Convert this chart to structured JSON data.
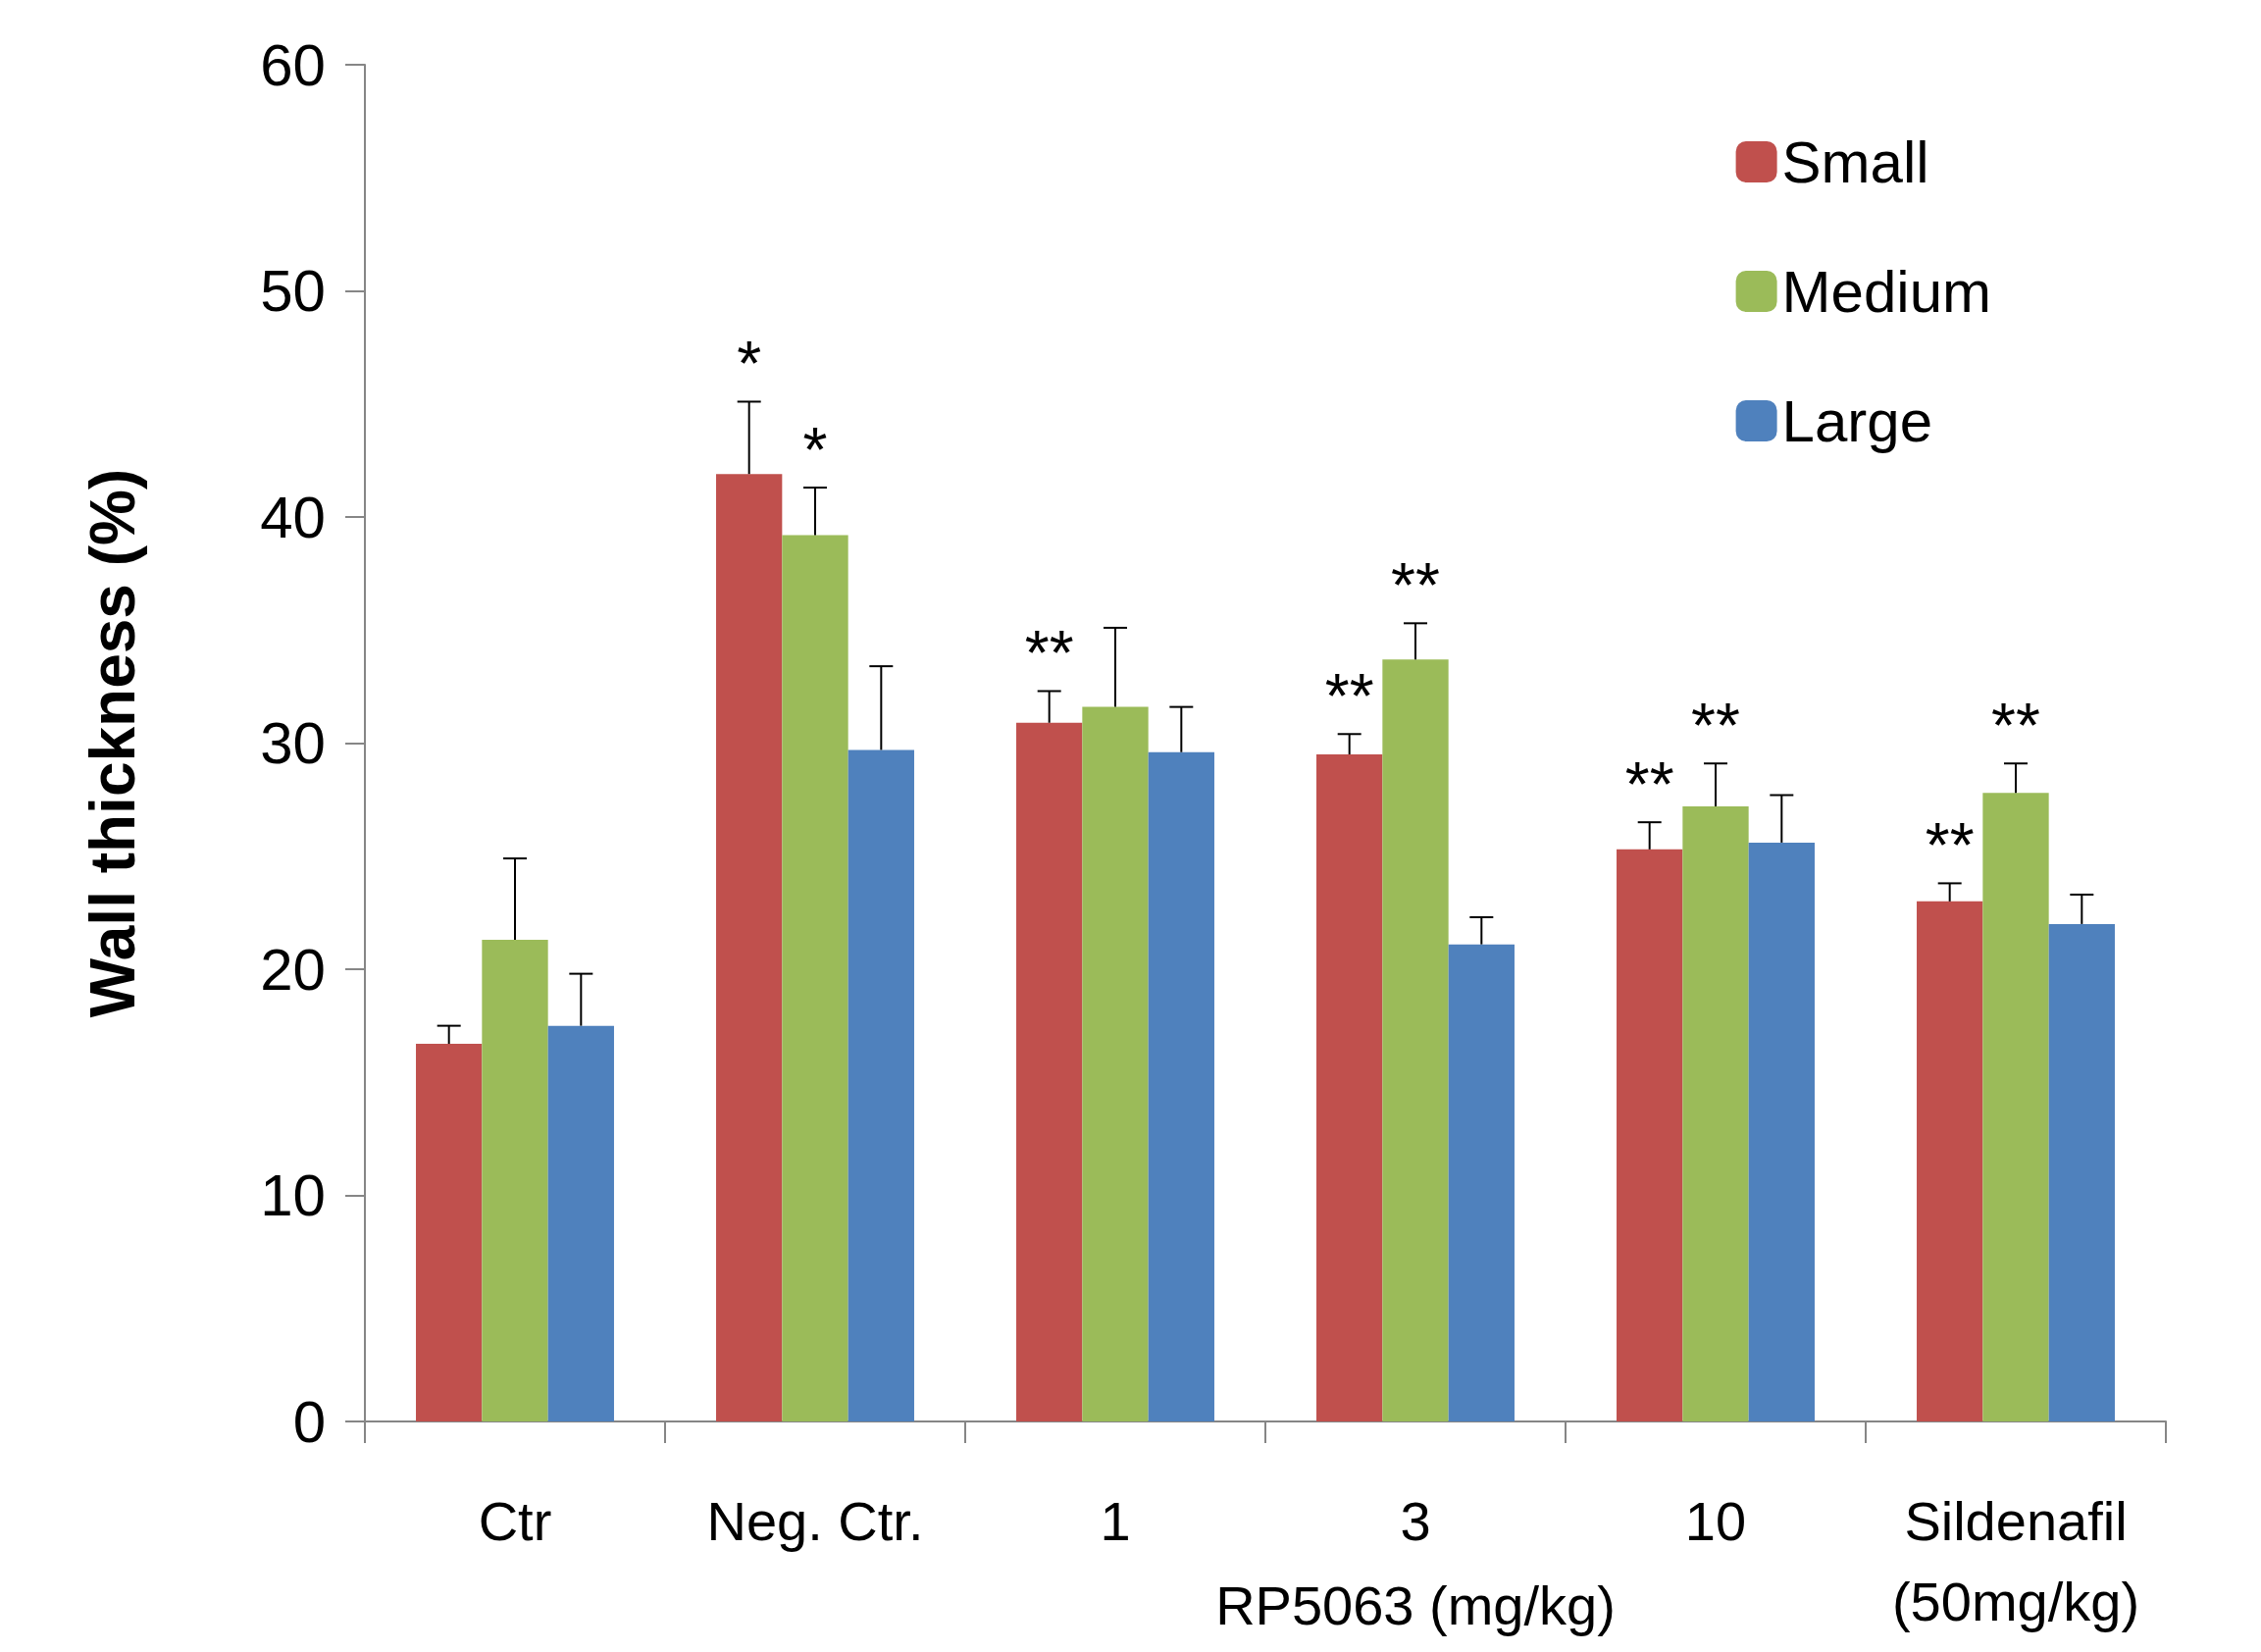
{
  "chart_data": {
    "type": "bar",
    "ylabel": "Wall thickness (%)",
    "categories": [
      "Ctr",
      "Neg. Ctr.",
      "1",
      "3",
      "10",
      "Sildenafil\n(50mg/kg)"
    ],
    "series": [
      {
        "name": "Small",
        "color": "#c0504d",
        "values": [
          16.7,
          41.9,
          30.9,
          29.5,
          25.3,
          23.0
        ],
        "errors": [
          [
            16.7,
            17.5
          ],
          [
            41.9,
            45.1
          ],
          [
            30.9,
            32.3
          ],
          [
            29.5,
            30.4
          ],
          [
            25.3,
            26.5
          ],
          [
            23.0,
            23.8
          ]
        ]
      },
      {
        "name": "Medium",
        "color": "#9bbb59",
        "values": [
          21.3,
          39.2,
          31.6,
          33.7,
          27.2,
          27.8
        ],
        "errors": [
          [
            21.3,
            24.9
          ],
          [
            39.2,
            41.3
          ],
          [
            31.6,
            35.1
          ],
          [
            33.7,
            35.3
          ],
          [
            27.2,
            29.1
          ],
          [
            27.8,
            29.1
          ]
        ]
      },
      {
        "name": "Large",
        "color": "#4f81bd",
        "values": [
          17.5,
          29.7,
          29.6,
          21.1,
          25.6,
          22.0
        ],
        "errors": [
          [
            17.5,
            19.8
          ],
          [
            29.7,
            33.4
          ],
          [
            29.6,
            31.6
          ],
          [
            21.1,
            22.3
          ],
          [
            25.6,
            27.7
          ],
          [
            22.0,
            23.3
          ]
        ]
      }
    ],
    "ylim": [
      0,
      60
    ],
    "yticks": [
      0,
      10,
      20,
      30,
      40,
      50,
      60
    ],
    "grid": false,
    "legend": "top right",
    "annotations": [
      "RP5063 (mg/kg)",
      "*",
      {
        "text": "*",
        "x": "Neg. Ctr.",
        "y": 41.3
      },
      "**",
      "**",
      {
        "text": "**",
        "x": "3",
        "y": 35.3
      },
      "**",
      {
        "text": "**",
        "x": "10",
        "y": 29.1
      },
      "**",
      {
        "text": "**",
        "x": "Sildenafil\n(50mg/kg)",
        "y": 29.1
      }
    ]
  }
}
